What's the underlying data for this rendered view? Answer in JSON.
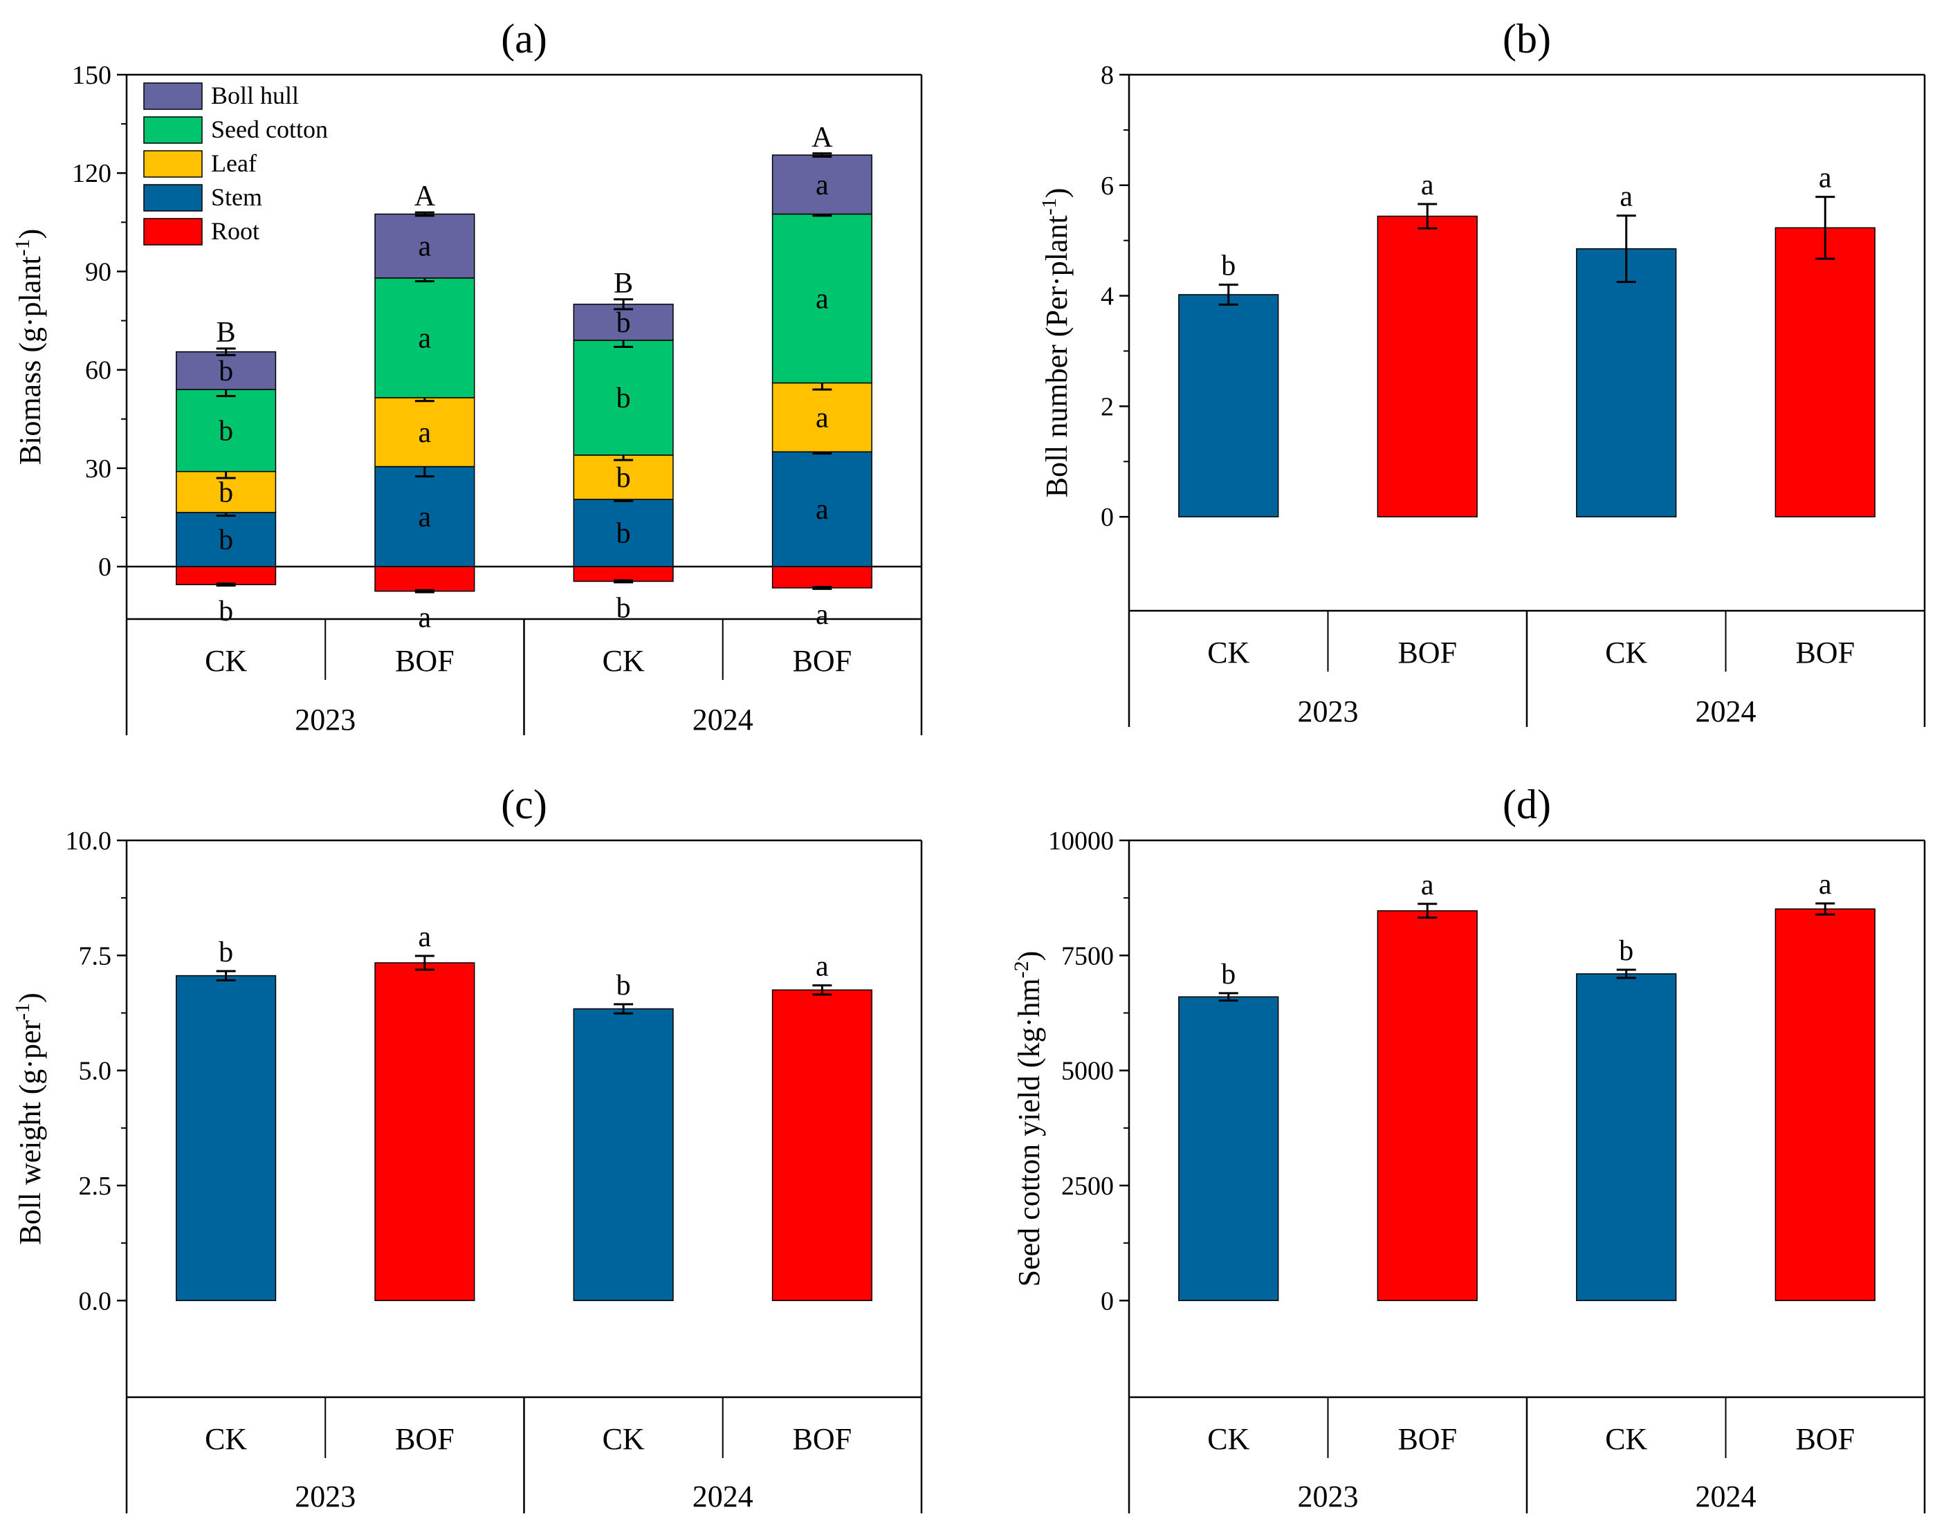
{
  "chart_data": [
    {
      "panel": "(a)",
      "type": "bar",
      "stacked": true,
      "title": "(a)",
      "ylabel": "Biomass (g·plant",
      "ylabel_sup": "-1",
      "ylabel_end": ")",
      "ylim": [
        -16,
        150
      ],
      "yticks": [
        0,
        30,
        60,
        90,
        120,
        150
      ],
      "categories": [
        "CK",
        "BOF",
        "CK",
        "BOF"
      ],
      "groups": [
        "2023",
        "2024"
      ],
      "legend_position": "top-left",
      "series": [
        {
          "name": "Boll hull",
          "color": "#6464A0",
          "values": [
            11.5,
            19.5,
            11,
            18
          ],
          "errors": [
            1.0,
            0.5,
            1.5,
            0.5
          ],
          "letters": [
            "b",
            "a",
            "b",
            "a"
          ]
        },
        {
          "name": "Seed cotton",
          "color": "#00C46E",
          "values": [
            25,
            36.5,
            35,
            51.5
          ],
          "errors": [
            2.0,
            1.0,
            2.0,
            0.5
          ],
          "letters": [
            "b",
            "a",
            "b",
            "a"
          ]
        },
        {
          "name": "Leaf",
          "color": "#FFC100",
          "values": [
            12.5,
            21,
            13.5,
            21
          ],
          "errors": [
            2.0,
            1.0,
            1.5,
            2.0
          ],
          "letters": [
            "b",
            "a",
            "b",
            "a"
          ]
        },
        {
          "name": "Stem",
          "color": "#00649C",
          "values": [
            16.5,
            30.5,
            20.5,
            35
          ],
          "errors": [
            1.0,
            3.0,
            0.5,
            0.5
          ],
          "letters": [
            "b",
            "a",
            "b",
            "a"
          ]
        },
        {
          "name": "Root",
          "color": "#FF0000",
          "values": [
            -5.5,
            -7.5,
            -4.5,
            -6.5
          ],
          "errors": [
            0.3,
            0.3,
            0.3,
            0.3
          ],
          "letters": [
            "b",
            "a",
            "b",
            "a"
          ]
        }
      ],
      "total_letters": [
        "B",
        "A",
        "B",
        "A"
      ]
    },
    {
      "panel": "(b)",
      "type": "bar",
      "title": "(b)",
      "ylabel": "Boll number (Per·plant",
      "ylabel_sup": "-1",
      "ylabel_end": ")",
      "ylim": [
        -1.7,
        8
      ],
      "yticks": [
        0,
        2,
        4,
        6,
        8
      ],
      "categories": [
        "CK",
        "BOF",
        "CK",
        "BOF"
      ],
      "groups": [
        "2023",
        "2024"
      ],
      "values": [
        4.02,
        5.44,
        4.85,
        5.23
      ],
      "errors": [
        0.18,
        0.22,
        0.6,
        0.56
      ],
      "letters": [
        "b",
        "a",
        "a",
        "a"
      ],
      "colors": [
        "#00649C",
        "#FF0000",
        "#00649C",
        "#FF0000"
      ]
    },
    {
      "panel": "(c)",
      "type": "bar",
      "title": "(c)",
      "ylabel": "Boll weight (g·per",
      "ylabel_sup": "-1",
      "ylabel_end": ")",
      "ylim": [
        -2.1,
        10
      ],
      "yticks": [
        0.0,
        2.5,
        5.0,
        7.5,
        10.0
      ],
      "ytick_labels": [
        "0.0",
        "2.5",
        "5.0",
        "7.5",
        "10.0"
      ],
      "categories": [
        "CK",
        "BOF",
        "CK",
        "BOF"
      ],
      "groups": [
        "2023",
        "2024"
      ],
      "values": [
        7.06,
        7.34,
        6.34,
        6.75
      ],
      "errors": [
        0.1,
        0.15,
        0.1,
        0.1
      ],
      "letters": [
        "b",
        "a",
        "b",
        "a"
      ],
      "colors": [
        "#00649C",
        "#FF0000",
        "#00649C",
        "#FF0000"
      ]
    },
    {
      "panel": "(d)",
      "type": "bar",
      "title": "(d)",
      "ylabel": "Seed cotton yield (kg·hm",
      "ylabel_sup": "-2",
      "ylabel_end": ")",
      "ylim": [
        -2100,
        10000
      ],
      "yticks": [
        0,
        2500,
        5000,
        7500,
        10000
      ],
      "categories": [
        "CK",
        "BOF",
        "CK",
        "BOF"
      ],
      "groups": [
        "2023",
        "2024"
      ],
      "values": [
        6600,
        8470,
        7100,
        8510
      ],
      "errors": [
        80,
        150,
        90,
        120
      ],
      "letters": [
        "b",
        "a",
        "b",
        "a"
      ],
      "colors": [
        "#00649C",
        "#FF0000",
        "#00649C",
        "#FF0000"
      ]
    }
  ]
}
